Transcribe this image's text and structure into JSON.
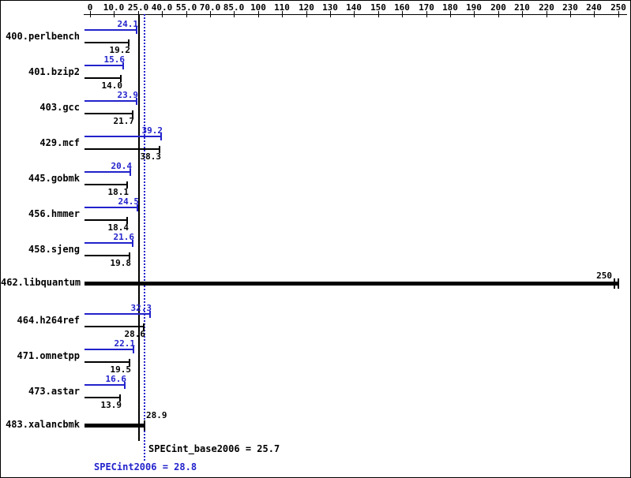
{
  "chart_data": {
    "type": "bar",
    "orientation": "horizontal",
    "axis": {
      "tick_values": [
        0,
        10,
        25,
        40,
        55,
        70,
        85,
        100,
        110,
        120,
        130,
        140,
        150,
        160,
        170,
        180,
        190,
        200,
        210,
        220,
        230,
        240,
        250
      ],
      "tick_labels": [
        "0",
        "10.0",
        "25.0",
        "40.0",
        "55.0",
        "70.0",
        "85.0",
        "100",
        "110",
        "120",
        "130",
        "140",
        "150",
        "160",
        "170",
        "180",
        "190",
        "200",
        "210",
        "220",
        "230",
        "240",
        "250"
      ],
      "xlim": [
        0,
        250
      ],
      "position": "top",
      "grid": false
    },
    "benchmarks": [
      {
        "name": "400.perlbench",
        "peak": 24.1,
        "base": 19.2
      },
      {
        "name": "401.bzip2",
        "peak": 15.6,
        "base": 14.0
      },
      {
        "name": "403.gcc",
        "peak": 23.9,
        "base": 21.7
      },
      {
        "name": "429.mcf",
        "peak": 39.2,
        "base": 38.3
      },
      {
        "name": "445.gobmk",
        "peak": 20.4,
        "base": 18.1
      },
      {
        "name": "456.hmmer",
        "peak": 24.5,
        "base": 18.4
      },
      {
        "name": "458.sjeng",
        "peak": 21.6,
        "base": 19.8
      },
      {
        "name": "462.libquantum",
        "value": 250,
        "label": "250",
        "style": "thick",
        "label_side": "left-of-end",
        "double_cap": true
      },
      {
        "name": "464.h264ref",
        "peak": 32.3,
        "base": 28.6
      },
      {
        "name": "471.omnetpp",
        "peak": 22.1,
        "base": 19.5
      },
      {
        "name": "473.astar",
        "peak": 16.6,
        "base": 13.9
      },
      {
        "name": "483.xalancbmk",
        "value": 28.9,
        "label": "28.9",
        "style": "thick",
        "label_side": "right-of-end",
        "double_cap": false
      }
    ],
    "summary": {
      "base_label": "SPECint_base2006 = 25.7",
      "base_value": 25.7,
      "peak_label": "SPECint2006 = 28.8",
      "peak_value": 28.8
    },
    "colors": {
      "peak": "#2222cc",
      "base": "#000000"
    }
  }
}
